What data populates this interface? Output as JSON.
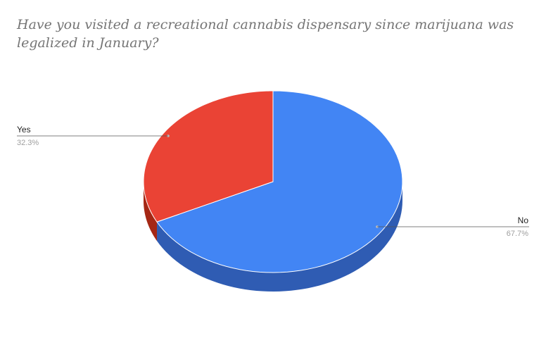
{
  "chart_data": {
    "type": "pie",
    "title": "Have you visited a recreational cannabis dispensary since marijuana was legalized in January?",
    "categories": [
      "Yes",
      "No"
    ],
    "values": [
      32.3,
      67.7
    ],
    "labels": [
      "32.3%",
      "67.7%"
    ],
    "colors": [
      "#ea4335",
      "#4285f4"
    ],
    "side_colors": [
      "#a52714",
      "#2f5cb3"
    ],
    "style": "3d",
    "legend": "labeled-lines"
  }
}
